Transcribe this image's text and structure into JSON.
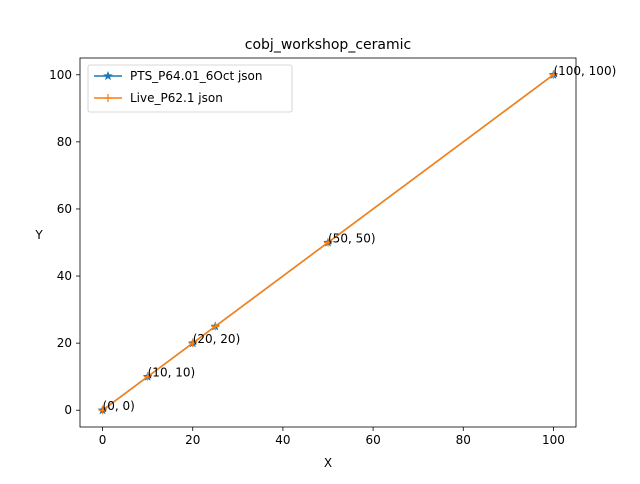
{
  "chart_data": {
    "type": "line",
    "title": "cobj_workshop_ceramic",
    "xlabel": "X",
    "ylabel": "Y",
    "xlim": [
      -5,
      105
    ],
    "ylim": [
      -5,
      105
    ],
    "xticks": [
      0,
      20,
      40,
      60,
      80,
      100
    ],
    "yticks": [
      0,
      20,
      40,
      60,
      80,
      100
    ],
    "grid": false,
    "legend_position": "top-left",
    "series": [
      {
        "name": "PTS_P64.01_6Oct json",
        "color": "#1f77b4",
        "marker": "star",
        "x": [
          0,
          10,
          20,
          25,
          50,
          100
        ],
        "y": [
          0,
          10,
          20,
          25,
          50,
          100
        ]
      },
      {
        "name": "Live_P62.1 json",
        "color": "#ff7f0e",
        "marker": "plus",
        "x": [
          0,
          10,
          20,
          25,
          50,
          100
        ],
        "y": [
          0,
          10,
          20,
          25,
          50,
          100
        ]
      }
    ],
    "annotations": [
      {
        "text": "(0, 0)",
        "x": 0,
        "y": 0
      },
      {
        "text": "(10, 10)",
        "x": 10,
        "y": 10
      },
      {
        "text": "(20, 20)",
        "x": 20,
        "y": 20
      },
      {
        "text": "(50, 50)",
        "x": 50,
        "y": 50
      },
      {
        "text": "(100, 100)",
        "x": 100,
        "y": 100
      }
    ]
  }
}
